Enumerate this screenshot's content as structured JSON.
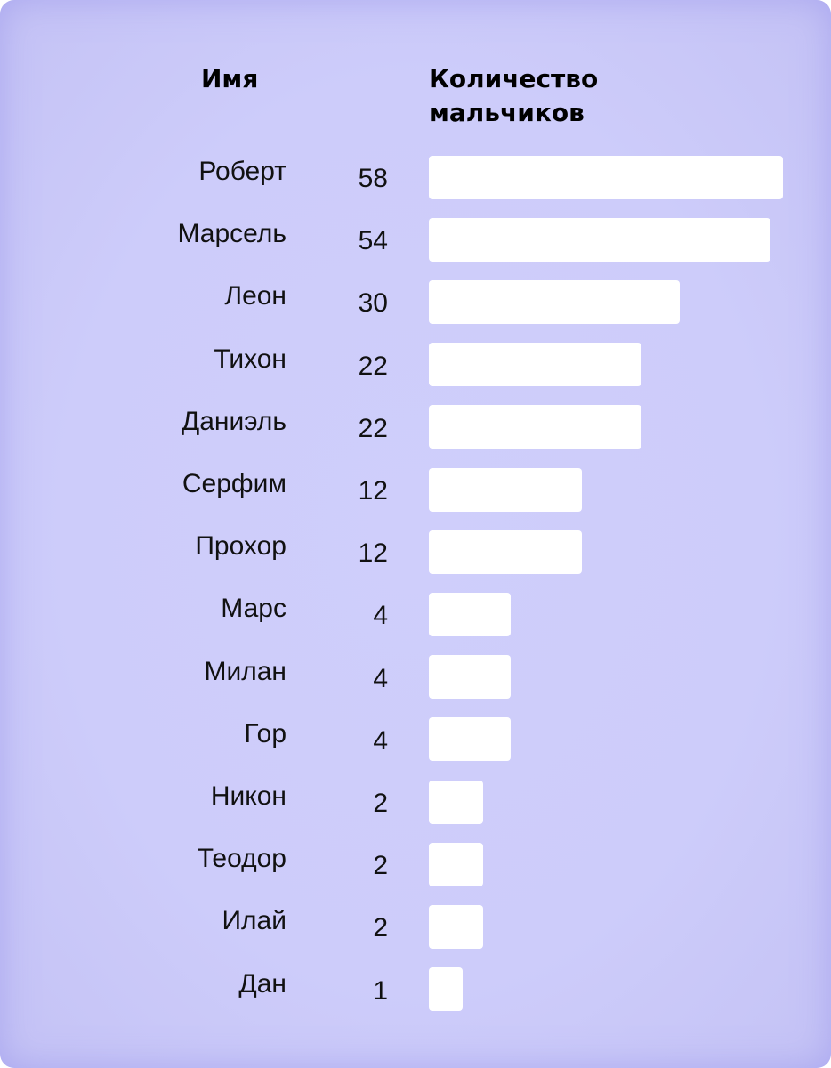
{
  "chart_data": {
    "type": "bar",
    "orientation": "horizontal",
    "columns": [
      "Имя",
      "Количество\nмальчиков"
    ],
    "categories": [
      "Роберт",
      "Марсель",
      "Леон",
      "Тихон",
      "Даниэль",
      "Серфим",
      "Прохор",
      "Марс",
      "Милан",
      "Гор",
      "Никон",
      "Теодор",
      "Илай",
      "Дан"
    ],
    "values": [
      58,
      54,
      30,
      22,
      22,
      12,
      12,
      4,
      4,
      4,
      2,
      2,
      2,
      1
    ],
    "value_labels": [
      "58",
      "54",
      "30",
      "22",
      "22",
      "12",
      "12",
      "4",
      "4",
      "4",
      "2",
      "2",
      "2",
      "1"
    ],
    "grid": false,
    "colors": {
      "background": "#cdccfa",
      "bar": "#ffffff",
      "text": "#111111"
    }
  }
}
